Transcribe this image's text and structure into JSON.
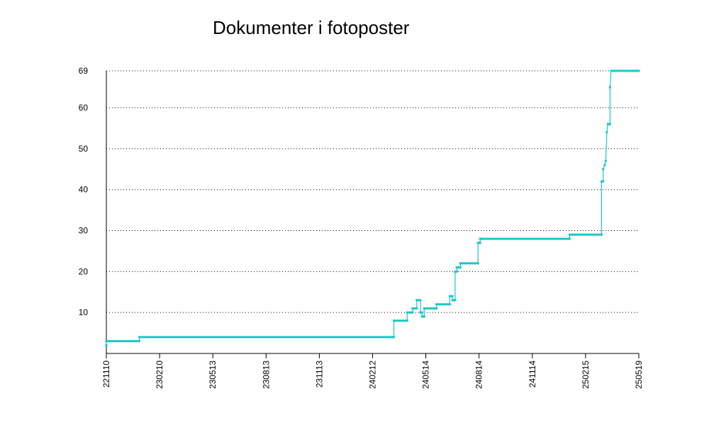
{
  "chart_data": {
    "type": "line",
    "title": "Dokumenter i fotoposter",
    "xlabel": "",
    "ylabel": "",
    "x_tick_labels": [
      "221110",
      "230210",
      "230513",
      "230813",
      "231113",
      "240212",
      "240514",
      "240814",
      "241114",
      "250215",
      "250519"
    ],
    "y_ticks": [
      10,
      20,
      30,
      40,
      50,
      60,
      69
    ],
    "ylim": [
      0,
      69
    ],
    "grid": "horizontal dotted",
    "legend": "none",
    "series_color": "#1cc7c7",
    "series": [
      {
        "points": [
          [
            0.0,
            2
          ],
          [
            0.0,
            3
          ],
          [
            0.62,
            3
          ],
          [
            0.62,
            4
          ],
          [
            5.4,
            4
          ],
          [
            5.4,
            8
          ],
          [
            5.65,
            8
          ],
          [
            5.65,
            10
          ],
          [
            5.75,
            10
          ],
          [
            5.75,
            11
          ],
          [
            5.83,
            11
          ],
          [
            5.83,
            13
          ],
          [
            5.9,
            13
          ],
          [
            5.9,
            10
          ],
          [
            5.93,
            10
          ],
          [
            5.93,
            9
          ],
          [
            5.97,
            9
          ],
          [
            5.97,
            11
          ],
          [
            6.2,
            11
          ],
          [
            6.2,
            12
          ],
          [
            6.45,
            12
          ],
          [
            6.45,
            14
          ],
          [
            6.5,
            14
          ],
          [
            6.5,
            13
          ],
          [
            6.55,
            13
          ],
          [
            6.55,
            20
          ],
          [
            6.58,
            20
          ],
          [
            6.58,
            21
          ],
          [
            6.65,
            21
          ],
          [
            6.65,
            22
          ],
          [
            6.98,
            22
          ],
          [
            6.98,
            27
          ],
          [
            7.02,
            27
          ],
          [
            7.02,
            28
          ],
          [
            8.7,
            28
          ],
          [
            8.7,
            29
          ],
          [
            9.3,
            29
          ],
          [
            9.3,
            42
          ],
          [
            9.33,
            42
          ],
          [
            9.33,
            45
          ],
          [
            9.36,
            46
          ],
          [
            9.38,
            47
          ],
          [
            9.4,
            54
          ],
          [
            9.42,
            56
          ],
          [
            9.46,
            56
          ],
          [
            9.46,
            65
          ],
          [
            9.48,
            69
          ],
          [
            10.0,
            69
          ]
        ]
      }
    ]
  }
}
